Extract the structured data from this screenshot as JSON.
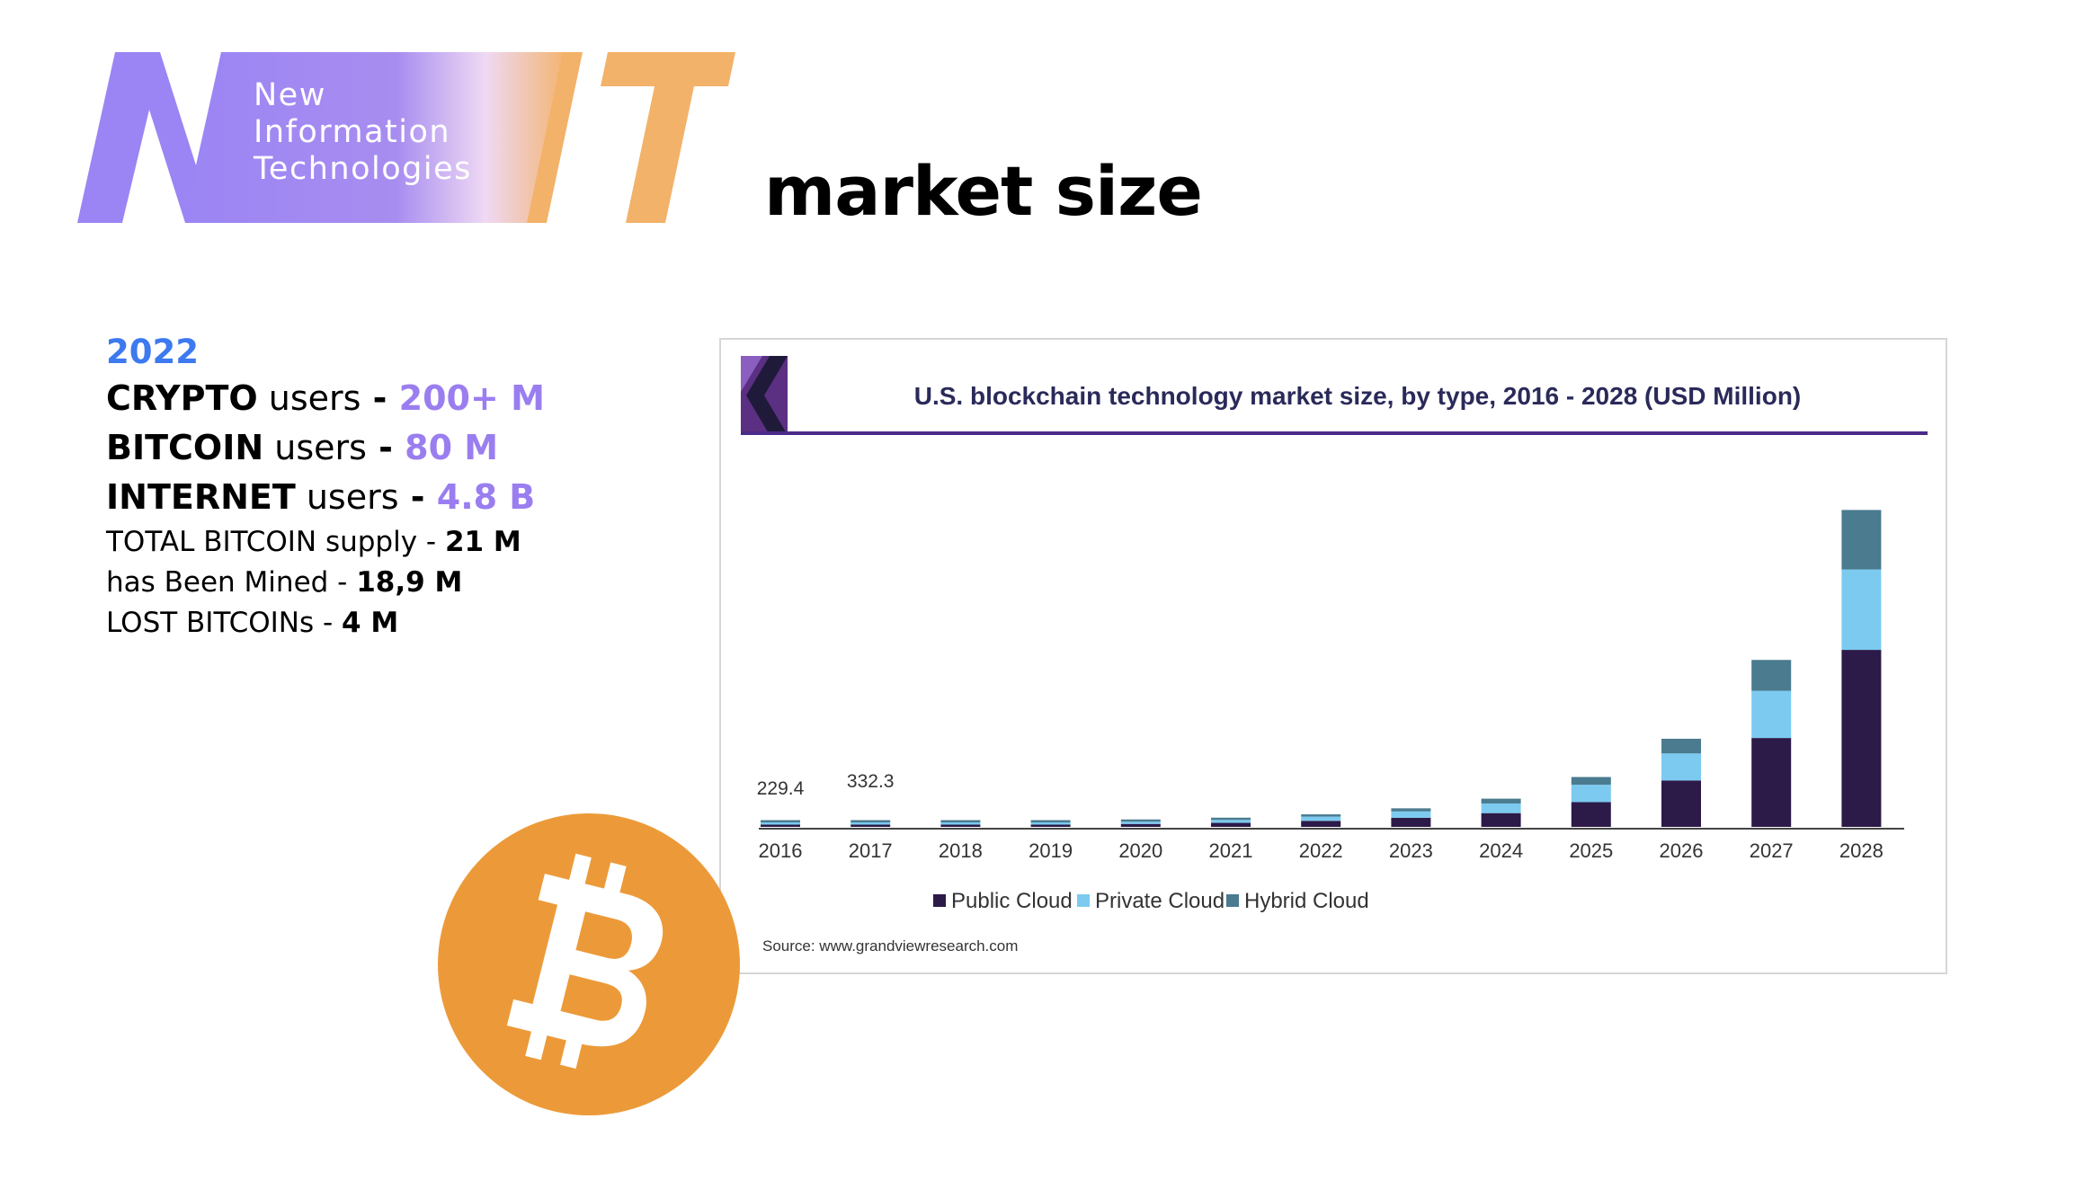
{
  "logo": {
    "lines": [
      "New",
      "Information",
      "Technologies"
    ],
    "colors": {
      "purple": "#9b85f4",
      "orange": "#f3b269"
    }
  },
  "page_title": "market size",
  "stats": {
    "year": "2022",
    "rows": [
      {
        "bold": "CRYPTO",
        "text": " users",
        "sep": " - ",
        "value": "200+ M"
      },
      {
        "bold": "BITCOIN",
        "text": " users",
        "sep": " - ",
        "value": "80 M"
      },
      {
        "bold": "INTERNET",
        "text": " users",
        "sep": " - ",
        "value": "4.8 B"
      }
    ],
    "small_rows": [
      {
        "label": "TOTAL BITCOIN supply - ",
        "value": "21 M"
      },
      {
        "label": "has Been Mined  - ",
        "value": "18,9 M"
      },
      {
        "label": "LOST BITCOINs - ",
        "value": "4 M"
      }
    ],
    "colors": {
      "year": "#3d79f0",
      "accent": "#9a7ef0"
    }
  },
  "bitcoin_icon": {
    "name": "bitcoin-icon",
    "color": "#ec9a39"
  },
  "chart_data": {
    "type": "bar",
    "stacked": true,
    "title": "U.S. blockchain technology market size, by type, 2016 - 2028 (USD Million)",
    "source": "Source: www.grandviewresearch.com",
    "categories": [
      "2016",
      "2017",
      "2018",
      "2019",
      "2020",
      "2021",
      "2022",
      "2023",
      "2024",
      "2025",
      "2026",
      "2027",
      "2028"
    ],
    "series": [
      {
        "name": "Public Cloud",
        "color": "#2c1a48",
        "values": [
          90,
          130,
          180,
          280,
          380,
          520,
          780,
          1180,
          1780,
          3200,
          6000,
          11500,
          22900
        ]
      },
      {
        "name": "Private Cloud",
        "color": "#7ccaf0",
        "values": [
          100,
          150,
          170,
          210,
          280,
          380,
          550,
          820,
          1250,
          2250,
          3500,
          6100,
          10400
        ]
      },
      {
        "name": "Hybrid Cloud",
        "color": "#4a7b8f",
        "values": [
          39.4,
          52.3,
          60,
          70,
          90,
          140,
          220,
          400,
          620,
          1000,
          1900,
          4000,
          7700
        ]
      }
    ],
    "data_labels": [
      {
        "category": "2016",
        "text": "229.4"
      },
      {
        "category": "2017",
        "text": "332.3"
      }
    ],
    "ylim": [
      0,
      50000
    ],
    "legend_position": "bottom",
    "grid": false
  }
}
